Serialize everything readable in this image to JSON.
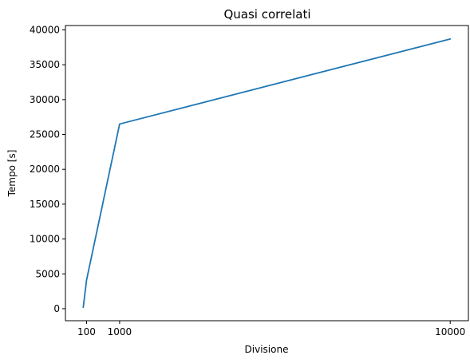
{
  "chart_data": {
    "type": "line",
    "title": "Quasi correlati",
    "xlabel": "Divisione",
    "ylabel": "Tempo [s]",
    "x": [
      10,
      100,
      1000,
      10000
    ],
    "series": [
      {
        "values": [
          200,
          4100,
          26500,
          38700
        ],
        "color": "#1f77b4"
      }
    ],
    "xlim": [
      -475,
      10495
    ],
    "ylim": [
      -1725,
      40630
    ],
    "xticks": [
      100,
      1000,
      10000
    ],
    "xtick_labels": [
      "100",
      "1000",
      "10000"
    ],
    "yticks": [
      0,
      5000,
      10000,
      15000,
      20000,
      25000,
      30000,
      35000,
      40000
    ],
    "ytick_labels": [
      "0",
      "5000",
      "10000",
      "15000",
      "20000",
      "25000",
      "30000",
      "35000",
      "40000"
    ],
    "grid": false,
    "legend": "none"
  }
}
